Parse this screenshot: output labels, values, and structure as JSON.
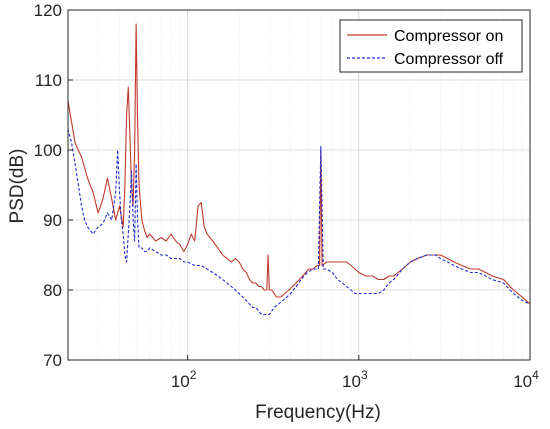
{
  "chart_data": {
    "type": "line",
    "title": "",
    "xlabel": "Frequency(Hz)",
    "ylabel": "PSD(dB)",
    "xscale": "log",
    "xlim": [
      20,
      10000
    ],
    "ylim": [
      70,
      120
    ],
    "grid": true,
    "legend_position": "top-right",
    "x_ticks": [
      {
        "base": "10",
        "exp": "2",
        "value": 100
      },
      {
        "base": "10",
        "exp": "3",
        "value": 1000
      },
      {
        "base": "10",
        "exp": "4",
        "value": 10000
      }
    ],
    "y_ticks": [
      "70",
      "80",
      "90",
      "100",
      "110",
      "120"
    ],
    "series": [
      {
        "name": "Compressor on",
        "color": "#c0392b",
        "style": "solid",
        "points": [
          [
            20,
            107
          ],
          [
            22,
            101
          ],
          [
            24,
            99
          ],
          [
            26,
            96
          ],
          [
            28,
            94
          ],
          [
            30,
            91
          ],
          [
            32,
            93
          ],
          [
            34,
            96
          ],
          [
            36,
            93
          ],
          [
            38,
            90
          ],
          [
            40,
            92
          ],
          [
            42,
            89
          ],
          [
            43,
            95
          ],
          [
            44,
            105
          ],
          [
            45,
            109
          ],
          [
            46,
            102
          ],
          [
            47,
            95
          ],
          [
            48,
            92
          ],
          [
            49,
            100
          ],
          [
            50,
            118
          ],
          [
            51,
            104
          ],
          [
            52,
            95
          ],
          [
            54,
            90
          ],
          [
            56,
            88.5
          ],
          [
            58,
            87.5
          ],
          [
            60,
            88
          ],
          [
            65,
            87
          ],
          [
            70,
            87.5
          ],
          [
            75,
            87
          ],
          [
            80,
            88
          ],
          [
            85,
            87
          ],
          [
            90,
            86.5
          ],
          [
            95,
            85.5
          ],
          [
            100,
            86.5
          ],
          [
            105,
            88
          ],
          [
            110,
            87
          ],
          [
            115,
            92
          ],
          [
            120,
            92.5
          ],
          [
            125,
            89
          ],
          [
            130,
            88
          ],
          [
            140,
            87
          ],
          [
            150,
            86
          ],
          [
            160,
            85
          ],
          [
            170,
            84.5
          ],
          [
            180,
            84
          ],
          [
            190,
            84.5
          ],
          [
            200,
            84
          ],
          [
            210,
            83
          ],
          [
            220,
            82.5
          ],
          [
            230,
            81.5
          ],
          [
            240,
            81
          ],
          [
            250,
            81
          ],
          [
            260,
            80.5
          ],
          [
            270,
            80.5
          ],
          [
            280,
            80
          ],
          [
            290,
            80
          ],
          [
            295,
            85
          ],
          [
            300,
            80
          ],
          [
            310,
            80
          ],
          [
            320,
            79.5
          ],
          [
            330,
            79
          ],
          [
            340,
            79
          ],
          [
            350,
            79
          ],
          [
            370,
            79.5
          ],
          [
            390,
            80
          ],
          [
            410,
            80.5
          ],
          [
            430,
            81
          ],
          [
            450,
            81.5
          ],
          [
            470,
            82
          ],
          [
            490,
            82.5
          ],
          [
            510,
            83
          ],
          [
            540,
            83
          ],
          [
            570,
            83.5
          ],
          [
            590,
            83.5
          ],
          [
            600,
            100
          ],
          [
            610,
            83.5
          ],
          [
            650,
            84
          ],
          [
            700,
            84
          ],
          [
            750,
            84
          ],
          [
            800,
            84
          ],
          [
            850,
            84
          ],
          [
            900,
            83.5
          ],
          [
            950,
            83
          ],
          [
            1000,
            82.5
          ],
          [
            1100,
            82
          ],
          [
            1200,
            82
          ],
          [
            1300,
            81.5
          ],
          [
            1400,
            81.5
          ],
          [
            1500,
            82
          ],
          [
            1600,
            82
          ],
          [
            1800,
            83
          ],
          [
            2000,
            84
          ],
          [
            2200,
            84.5
          ],
          [
            2500,
            85
          ],
          [
            2800,
            85
          ],
          [
            3000,
            85
          ],
          [
            3300,
            84.5
          ],
          [
            3600,
            84
          ],
          [
            4000,
            83.5
          ],
          [
            4500,
            83
          ],
          [
            5000,
            83
          ],
          [
            5500,
            82.5
          ],
          [
            6000,
            82
          ],
          [
            7000,
            81.5
          ],
          [
            8000,
            80
          ],
          [
            9000,
            79
          ],
          [
            10000,
            78
          ]
        ]
      },
      {
        "name": "Compressor off",
        "color": "#1f2bd6",
        "style": "dashed",
        "points": [
          [
            20,
            103
          ],
          [
            21,
            101
          ],
          [
            22,
            98
          ],
          [
            23,
            95
          ],
          [
            24,
            92
          ],
          [
            25,
            90
          ],
          [
            26,
            89
          ],
          [
            27,
            88.5
          ],
          [
            28,
            88
          ],
          [
            29,
            88.5
          ],
          [
            30,
            89
          ],
          [
            32,
            89.5
          ],
          [
            34,
            91
          ],
          [
            36,
            90
          ],
          [
            38,
            94
          ],
          [
            39,
            100
          ],
          [
            40,
            94
          ],
          [
            41,
            90
          ],
          [
            42,
            88
          ],
          [
            43,
            85
          ],
          [
            44,
            84
          ],
          [
            45,
            88
          ],
          [
            46,
            92
          ],
          [
            47,
            97
          ],
          [
            48,
            90
          ],
          [
            49,
            87
          ],
          [
            50,
            98
          ],
          [
            51,
            90
          ],
          [
            52,
            86
          ],
          [
            54,
            86
          ],
          [
            56,
            85.5
          ],
          [
            58,
            85.5
          ],
          [
            60,
            86
          ],
          [
            65,
            85.5
          ],
          [
            70,
            85
          ],
          [
            75,
            85
          ],
          [
            80,
            84.5
          ],
          [
            85,
            84.5
          ],
          [
            90,
            84.5
          ],
          [
            95,
            84
          ],
          [
            100,
            84
          ],
          [
            110,
            83.5
          ],
          [
            120,
            83.5
          ],
          [
            130,
            83
          ],
          [
            140,
            82.5
          ],
          [
            150,
            82
          ],
          [
            160,
            81.5
          ],
          [
            170,
            81
          ],
          [
            180,
            80.5
          ],
          [
            190,
            80
          ],
          [
            200,
            79.5
          ],
          [
            210,
            79
          ],
          [
            220,
            78.5
          ],
          [
            230,
            78
          ],
          [
            240,
            77.5
          ],
          [
            250,
            77.5
          ],
          [
            260,
            77
          ],
          [
            270,
            76.5
          ],
          [
            280,
            76.5
          ],
          [
            290,
            76.5
          ],
          [
            300,
            76.5
          ],
          [
            310,
            77
          ],
          [
            320,
            77.5
          ],
          [
            340,
            78
          ],
          [
            360,
            78.5
          ],
          [
            380,
            79
          ],
          [
            400,
            79.5
          ],
          [
            430,
            80.5
          ],
          [
            460,
            81.5
          ],
          [
            500,
            82.5
          ],
          [
            540,
            83
          ],
          [
            580,
            83
          ],
          [
            600,
            100.5
          ],
          [
            620,
            83
          ],
          [
            650,
            83
          ],
          [
            700,
            82.5
          ],
          [
            750,
            81.5
          ],
          [
            800,
            81
          ],
          [
            850,
            80.5
          ],
          [
            900,
            80
          ],
          [
            950,
            79.5
          ],
          [
            1000,
            79.5
          ],
          [
            1100,
            79.5
          ],
          [
            1200,
            79.5
          ],
          [
            1300,
            79.5
          ],
          [
            1400,
            80
          ],
          [
            1500,
            81
          ],
          [
            1600,
            81.5
          ],
          [
            1800,
            83
          ],
          [
            2000,
            84
          ],
          [
            2200,
            84.5
          ],
          [
            2500,
            85
          ],
          [
            2800,
            85
          ],
          [
            3000,
            84.5
          ],
          [
            3300,
            84
          ],
          [
            3600,
            83.5
          ],
          [
            4000,
            83
          ],
          [
            4500,
            82.5
          ],
          [
            5000,
            82.5
          ],
          [
            5500,
            82
          ],
          [
            6000,
            81.5
          ],
          [
            7000,
            81
          ],
          [
            8000,
            79.5
          ],
          [
            9000,
            78.5
          ],
          [
            10000,
            78
          ]
        ]
      }
    ]
  }
}
